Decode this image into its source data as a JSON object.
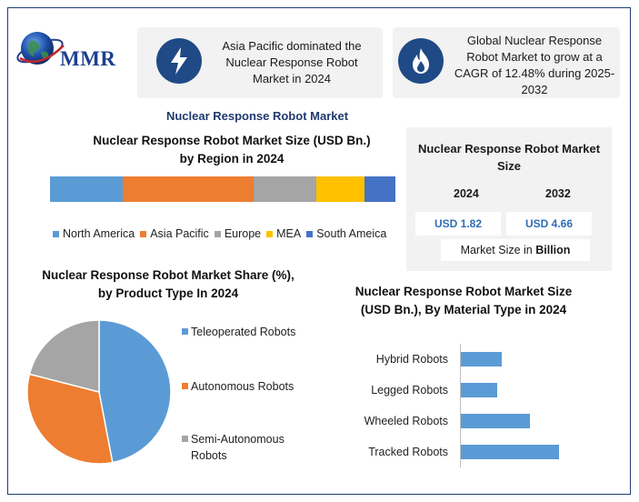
{
  "brand": {
    "logo_text": "MMR"
  },
  "highlights": [
    {
      "icon": "lightning-icon",
      "text": "Asia Pacific dominated the Nuclear Response Robot Market in 2024"
    },
    {
      "icon": "flame-icon",
      "text": "Global Nuclear Response Robot Market to grow at a CAGR of 12.48% during 2025-2032"
    }
  ],
  "main_title": "Nuclear Response Robot Market",
  "size_panel": {
    "title": "Nuclear Response Robot Market Size",
    "years": [
      "2024",
      "2032"
    ],
    "values": [
      "USD 1.82",
      "USD 4.66"
    ],
    "unit_prefix": "Market Size in ",
    "unit_bold": "Billion"
  },
  "colors": {
    "blue": "#5b9bd5",
    "orange": "#ed7d31",
    "gray": "#a5a5a5",
    "yellow": "#ffc000",
    "dark_blue": "#4472c4",
    "icon_bg": "#1f4a86"
  },
  "chart_data": [
    {
      "type": "bar",
      "orientation": "stacked-horizontal",
      "title": "Nuclear Response Robot Market Size (USD Bn.) by Region in 2024",
      "categories": [
        "North America",
        "Asia Pacific",
        "Europe",
        "MEA",
        "South Ameica"
      ],
      "values": [
        21,
        38,
        18,
        14,
        9
      ],
      "colors": [
        "#5b9bd5",
        "#ed7d31",
        "#a5a5a5",
        "#ffc000",
        "#4472c4"
      ],
      "legend": "bottom"
    },
    {
      "type": "pie",
      "title": "Nuclear Response Robot Market Share (%), by Product Type In 2024",
      "categories": [
        "Teleoperated Robots",
        "Autonomous Robots",
        "Semi-Autonomous Robots"
      ],
      "legend_labels": [
        [
          "Teleoperated Robots"
        ],
        [
          "Autonomous Robots"
        ],
        [
          "Semi-Autonomous",
          "Robots"
        ]
      ],
      "values": [
        47,
        32,
        21
      ],
      "colors": [
        "#5b9bd5",
        "#ed7d31",
        "#a5a5a5"
      ],
      "legend": "right"
    },
    {
      "type": "bar",
      "orientation": "horizontal",
      "title": "Nuclear Response Robot Market Size (USD Bn.), By Material Type in 2024",
      "categories": [
        "Hybrid Robots",
        "Legged Robots",
        "Wheeled Robots",
        "Tracked Robots"
      ],
      "values": [
        0.42,
        0.37,
        0.7,
        1.0
      ],
      "xlim": [
        0,
        1.2
      ],
      "color": "#5b9bd5"
    }
  ]
}
